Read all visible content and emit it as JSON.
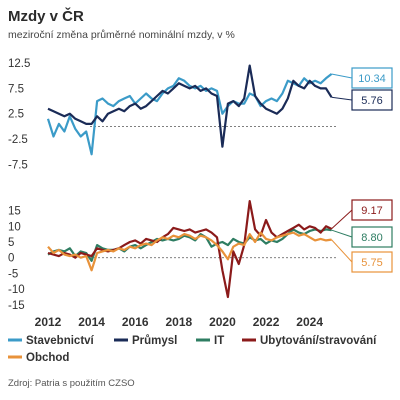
{
  "title": "Mzdy v ČR",
  "subtitle": "meziroční změna průměrné nominální mzdy, v %",
  "source": "Zdroj: Patria s použitím CZSO",
  "colors": {
    "stavebnictvi": "#3b9bc8",
    "prumysl": "#1a2b57",
    "it": "#2e7d62",
    "ubytovani": "#8b1a1a",
    "obchod": "#e8923a"
  },
  "chart_data": [
    {
      "type": "line",
      "yticks": [
        "12.5",
        "7.5",
        "2.5",
        "-2.5",
        "-7.5"
      ],
      "ylim": [
        -9,
        13.5
      ],
      "xlim": [
        2012,
        2025.3
      ],
      "series": [
        {
          "name": "Stavebnictví",
          "key": "stavebnictvi",
          "x": [
            2012.0,
            2012.25,
            2012.5,
            2012.75,
            2013.0,
            2013.25,
            2013.5,
            2013.75,
            2014.0,
            2014.25,
            2014.5,
            2014.75,
            2015.0,
            2015.25,
            2015.5,
            2015.75,
            2016.0,
            2016.25,
            2016.5,
            2016.75,
            2017.0,
            2017.25,
            2017.5,
            2017.75,
            2018.0,
            2018.25,
            2018.5,
            2018.75,
            2019.0,
            2019.25,
            2019.5,
            2019.75,
            2020.0,
            2020.25,
            2020.5,
            2020.75,
            2021.0,
            2021.25,
            2021.5,
            2021.75,
            2022.0,
            2022.25,
            2022.5,
            2022.75,
            2023.0,
            2023.25,
            2023.5,
            2023.75,
            2024.0,
            2024.25,
            2024.5,
            2024.75,
            2025.0
          ],
          "values": [
            1.5,
            -2.0,
            0.5,
            -1.0,
            2.0,
            -0.5,
            -2.0,
            -1.0,
            -5.5,
            5.0,
            5.5,
            4.5,
            4.0,
            5.0,
            5.5,
            6.0,
            4.5,
            5.5,
            6.5,
            5.5,
            5.0,
            6.5,
            7.5,
            8.0,
            9.5,
            9.0,
            8.0,
            7.5,
            8.0,
            7.0,
            7.5,
            7.0,
            2.5,
            4.0,
            5.0,
            4.5,
            4.5,
            6.5,
            6.0,
            4.0,
            5.0,
            5.5,
            5.0,
            6.5,
            9.0,
            8.5,
            8.0,
            9.5,
            8.5,
            9.0,
            8.5,
            9.5,
            10.34
          ]
        },
        {
          "name": "Průmysl",
          "key": "prumysl",
          "x": [
            2012.0,
            2012.25,
            2012.5,
            2012.75,
            2013.0,
            2013.25,
            2013.5,
            2013.75,
            2014.0,
            2014.25,
            2014.5,
            2014.75,
            2015.0,
            2015.25,
            2015.5,
            2015.75,
            2016.0,
            2016.25,
            2016.5,
            2016.75,
            2017.0,
            2017.25,
            2017.5,
            2017.75,
            2018.0,
            2018.25,
            2018.5,
            2018.75,
            2019.0,
            2019.25,
            2019.5,
            2019.75,
            2020.0,
            2020.25,
            2020.5,
            2020.75,
            2021.0,
            2021.25,
            2021.5,
            2021.75,
            2022.0,
            2022.25,
            2022.5,
            2022.75,
            2023.0,
            2023.25,
            2023.5,
            2023.75,
            2024.0,
            2024.25,
            2024.5,
            2024.75,
            2025.0
          ],
          "values": [
            3.5,
            3.0,
            2.5,
            2.0,
            2.5,
            1.5,
            1.0,
            0.5,
            0.5,
            2.0,
            1.0,
            2.5,
            3.0,
            3.5,
            3.0,
            4.0,
            4.5,
            3.5,
            4.0,
            5.0,
            6.0,
            7.0,
            6.5,
            7.5,
            8.5,
            8.0,
            7.5,
            8.0,
            7.0,
            7.5,
            6.5,
            6.0,
            -4.0,
            4.5,
            5.0,
            4.0,
            5.5,
            12.0,
            6.0,
            4.5,
            3.5,
            3.0,
            2.5,
            3.5,
            5.5,
            9.0,
            8.0,
            7.5,
            9.0,
            8.0,
            7.5,
            7.5,
            5.76
          ]
        }
      ],
      "labels": [
        {
          "series": "stavebnictvi",
          "value": "10.34"
        },
        {
          "series": "prumysl",
          "value": "5.76"
        }
      ]
    },
    {
      "type": "line",
      "yticks": [
        "15",
        "10",
        "5",
        "0",
        "-5",
        "-10",
        "-15"
      ],
      "ylim": [
        -16,
        19
      ],
      "xlim": [
        2012,
        2025.3
      ],
      "xticks": [
        "2012",
        "2014",
        "2016",
        "2018",
        "2020",
        "2022",
        "2024"
      ],
      "series": [
        {
          "name": "IT",
          "key": "it",
          "x": [
            2012.0,
            2012.25,
            2012.5,
            2012.75,
            2013.0,
            2013.25,
            2013.5,
            2013.75,
            2014.0,
            2014.25,
            2014.5,
            2014.75,
            2015.0,
            2015.25,
            2015.5,
            2015.75,
            2016.0,
            2016.25,
            2016.5,
            2016.75,
            2017.0,
            2017.25,
            2017.5,
            2017.75,
            2018.0,
            2018.25,
            2018.5,
            2018.75,
            2019.0,
            2019.25,
            2019.5,
            2019.75,
            2020.0,
            2020.25,
            2020.5,
            2020.75,
            2021.0,
            2021.25,
            2021.5,
            2021.75,
            2022.0,
            2022.25,
            2022.5,
            2022.75,
            2023.0,
            2023.25,
            2023.5,
            2023.75,
            2024.0,
            2024.25,
            2024.5,
            2024.75,
            2025.0
          ],
          "values": [
            1.0,
            2.0,
            2.5,
            2.0,
            3.0,
            0.5,
            2.0,
            1.5,
            -1.0,
            4.0,
            3.0,
            2.5,
            2.5,
            3.0,
            2.0,
            3.5,
            4.0,
            3.0,
            4.0,
            5.0,
            6.0,
            5.5,
            6.0,
            5.5,
            6.0,
            7.0,
            6.5,
            5.5,
            7.5,
            6.5,
            3.5,
            4.5,
            5.0,
            4.0,
            6.0,
            5.0,
            4.5,
            6.5,
            5.5,
            6.0,
            4.5,
            5.5,
            5.0,
            6.0,
            7.5,
            9.0,
            8.0,
            7.5,
            8.5,
            9.0,
            8.5,
            9.0,
            8.8
          ]
        },
        {
          "name": "Ubytování/stravování",
          "key": "ubytovani",
          "x": [
            2012.0,
            2012.25,
            2012.5,
            2012.75,
            2013.0,
            2013.25,
            2013.5,
            2013.75,
            2014.0,
            2014.25,
            2014.5,
            2014.75,
            2015.0,
            2015.25,
            2015.5,
            2015.75,
            2016.0,
            2016.25,
            2016.5,
            2016.75,
            2017.0,
            2017.25,
            2017.5,
            2017.75,
            2018.0,
            2018.25,
            2018.5,
            2018.75,
            2019.0,
            2019.25,
            2019.5,
            2019.75,
            2020.0,
            2020.25,
            2020.5,
            2020.75,
            2021.0,
            2021.25,
            2021.5,
            2021.75,
            2022.0,
            2022.25,
            2022.5,
            2022.75,
            2023.0,
            2023.25,
            2023.5,
            2023.75,
            2024.0,
            2024.25,
            2024.5,
            2024.75,
            2025.0
          ],
          "values": [
            1.5,
            1.0,
            0.5,
            1.5,
            1.0,
            0.0,
            1.5,
            1.0,
            0.5,
            3.0,
            2.5,
            2.0,
            2.5,
            3.0,
            4.0,
            5.0,
            5.5,
            4.5,
            6.0,
            5.5,
            5.0,
            6.5,
            7.5,
            9.5,
            9.0,
            8.5,
            9.0,
            8.0,
            8.5,
            9.0,
            8.0,
            6.5,
            -4.0,
            -12.5,
            2.0,
            -2.0,
            4.0,
            18.0,
            9.0,
            7.0,
            12.0,
            8.0,
            6.5,
            7.5,
            8.5,
            9.5,
            10.5,
            9.0,
            10.0,
            9.5,
            8.0,
            10.0,
            9.17
          ]
        },
        {
          "name": "Obchod",
          "key": "obchod",
          "x": [
            2012.0,
            2012.25,
            2012.5,
            2012.75,
            2013.0,
            2013.25,
            2013.5,
            2013.75,
            2014.0,
            2014.25,
            2014.5,
            2014.75,
            2015.0,
            2015.25,
            2015.5,
            2015.75,
            2016.0,
            2016.25,
            2016.5,
            2016.75,
            2017.0,
            2017.25,
            2017.5,
            2017.75,
            2018.0,
            2018.25,
            2018.5,
            2018.75,
            2019.0,
            2019.25,
            2019.5,
            2019.75,
            2020.0,
            2020.25,
            2020.5,
            2020.75,
            2021.0,
            2021.25,
            2021.5,
            2021.75,
            2022.0,
            2022.25,
            2022.5,
            2022.75,
            2023.0,
            2023.25,
            2023.5,
            2023.75,
            2024.0,
            2024.25,
            2024.5,
            2024.75,
            2025.0
          ],
          "values": [
            3.5,
            1.5,
            2.5,
            1.0,
            0.5,
            1.0,
            0.0,
            0.5,
            -4.0,
            1.5,
            2.0,
            2.5,
            2.0,
            3.0,
            2.5,
            3.5,
            3.0,
            4.0,
            4.5,
            4.0,
            5.5,
            6.5,
            6.0,
            7.0,
            6.5,
            7.5,
            7.0,
            6.0,
            7.0,
            6.5,
            5.5,
            4.0,
            2.0,
            -0.5,
            3.5,
            4.5,
            4.0,
            7.5,
            5.0,
            8.0,
            6.0,
            5.5,
            6.5,
            7.0,
            7.5,
            8.0,
            7.0,
            7.5,
            6.5,
            5.5,
            6.0,
            5.5,
            5.75
          ]
        }
      ],
      "labels": [
        {
          "series": "ubytovani",
          "value": "9.17"
        },
        {
          "series": "it",
          "value": "8.80"
        },
        {
          "series": "obchod",
          "value": "5.75"
        }
      ]
    }
  ],
  "legend": [
    {
      "label": "Stavebnictví",
      "key": "stavebnictvi"
    },
    {
      "label": "Průmysl",
      "key": "prumysl"
    },
    {
      "label": "IT",
      "key": "it"
    },
    {
      "label": "Ubytování/stravování",
      "key": "ubytovani"
    },
    {
      "label": "Obchod",
      "key": "obchod"
    }
  ]
}
